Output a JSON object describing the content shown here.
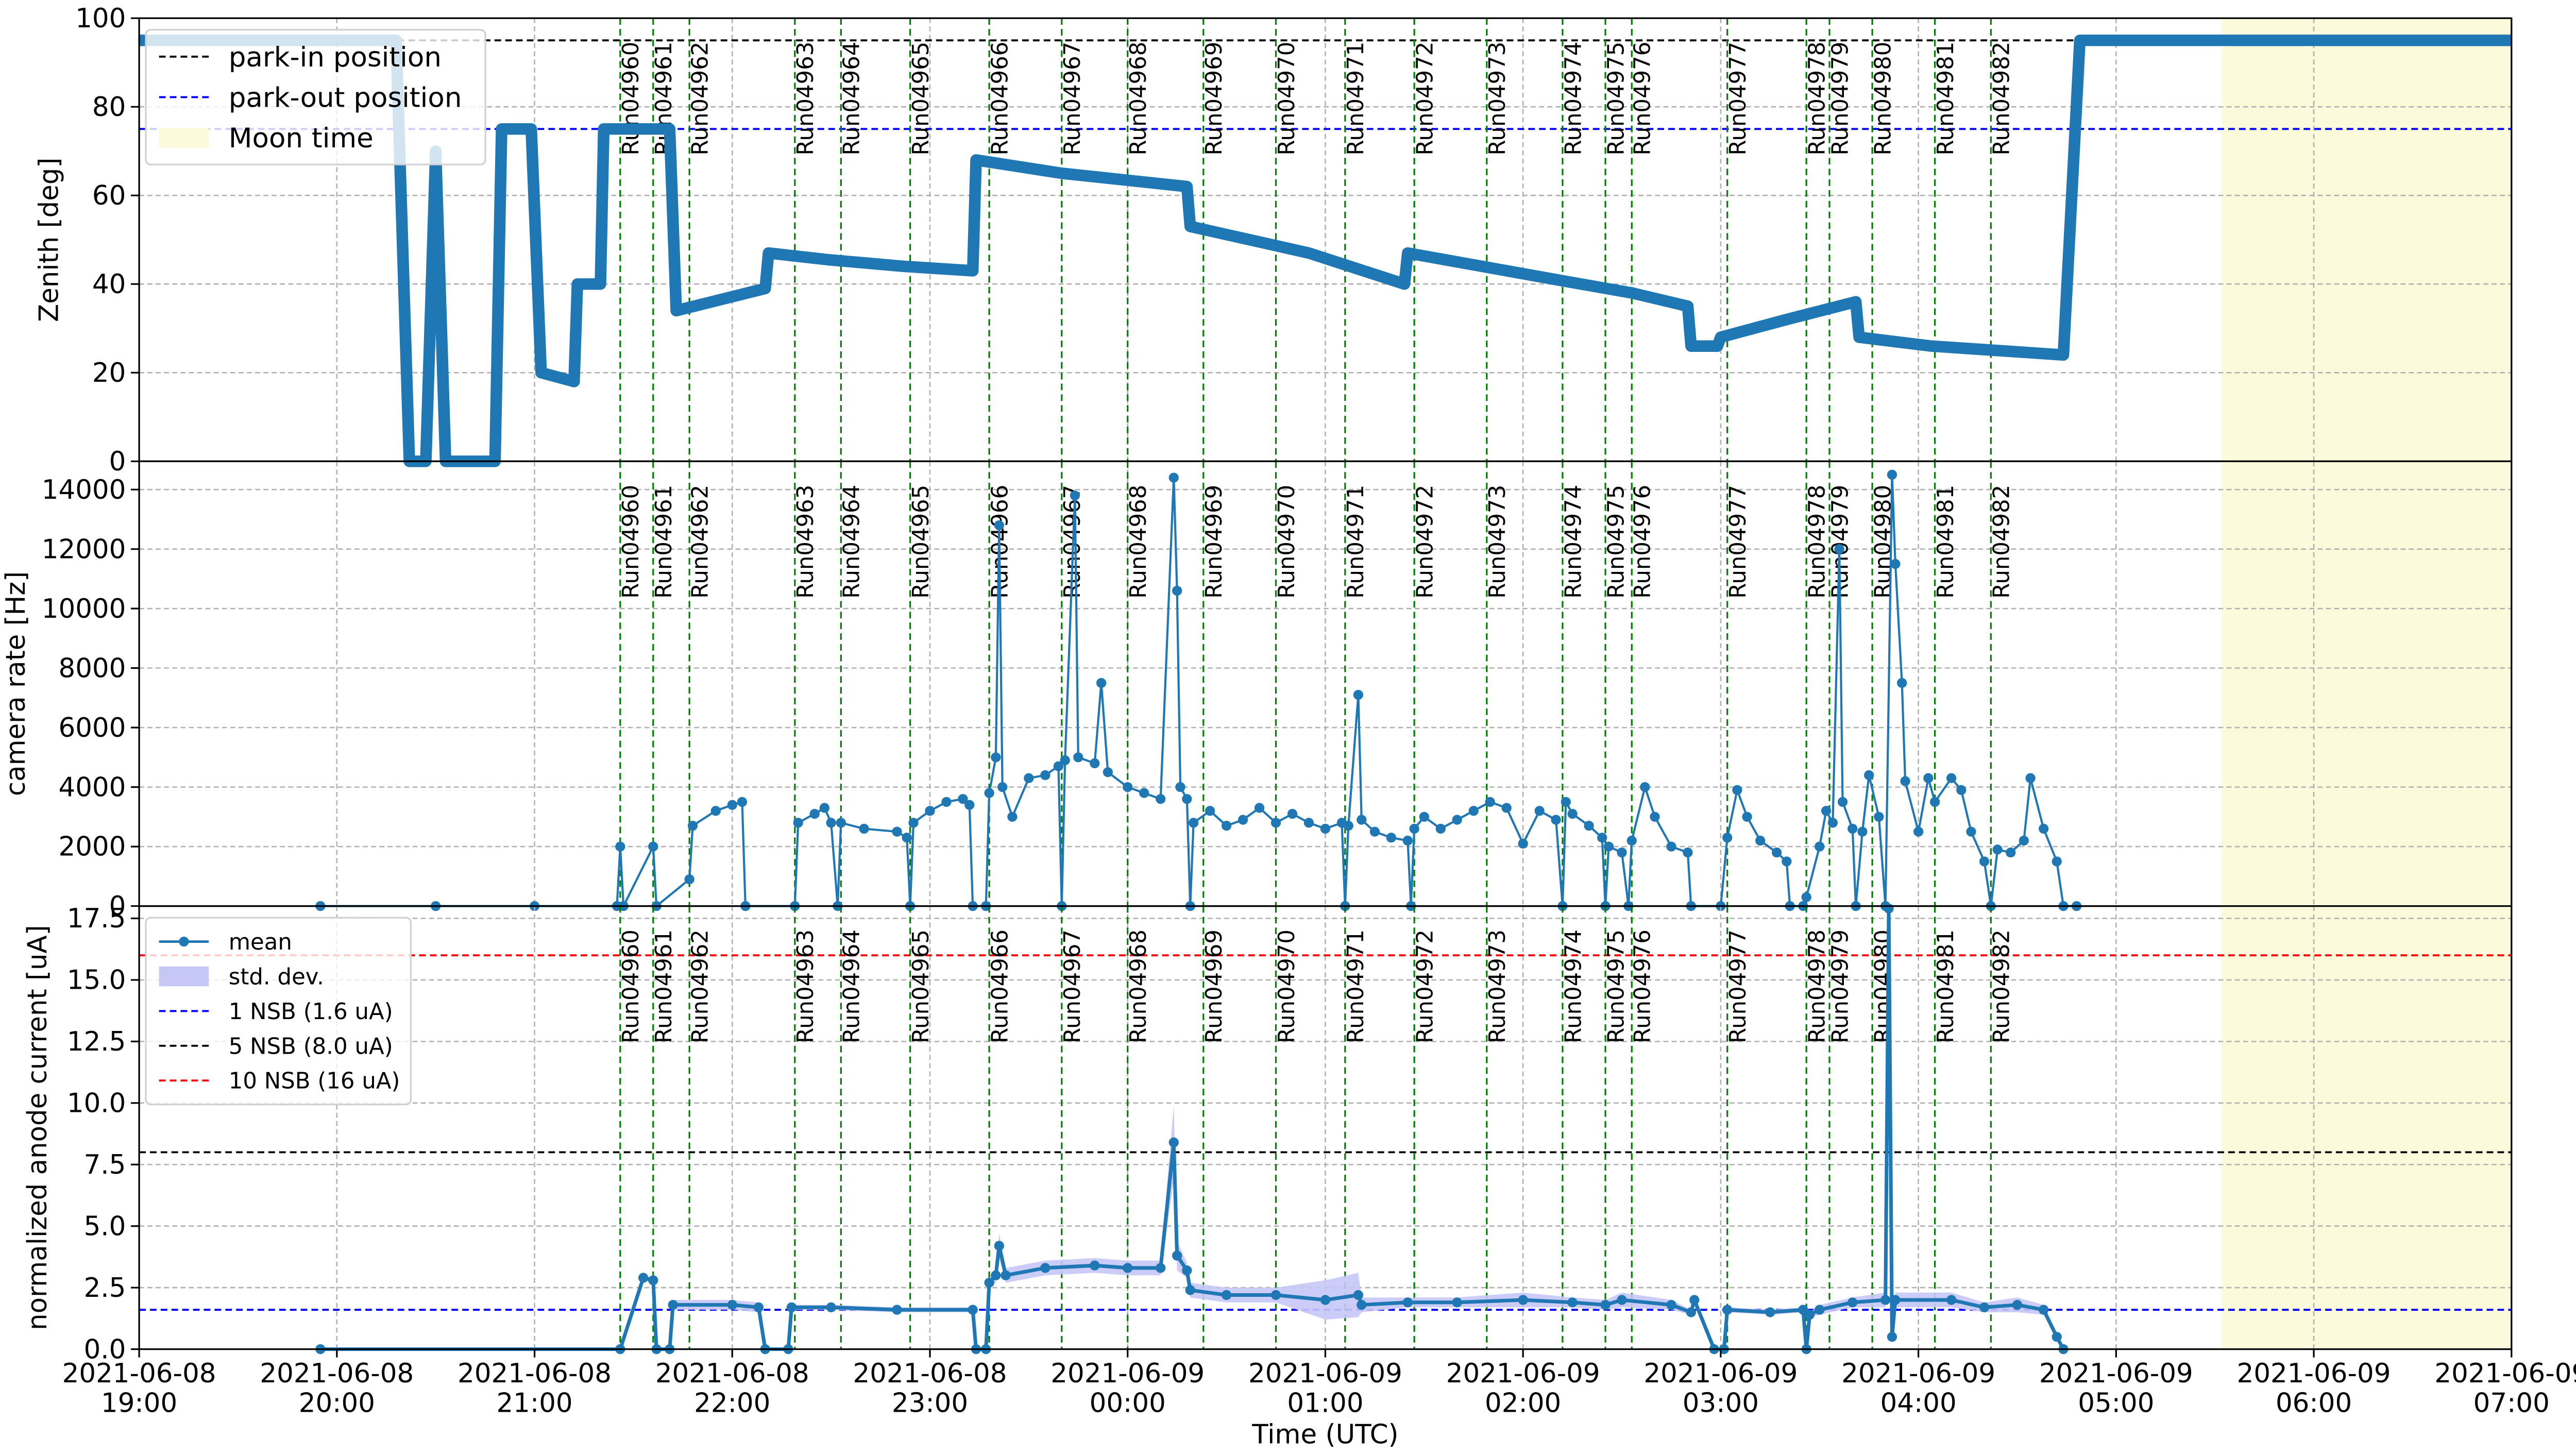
{
  "runs": {
    "line_color": "green",
    "label_color": "red",
    "items": [
      {
        "time": "2021-06-08T21:26",
        "label": "Run04960"
      },
      {
        "time": "2021-06-08T21:36",
        "label": "Run04961"
      },
      {
        "time": "2021-06-08T21:47",
        "label": "Run04962"
      },
      {
        "time": "2021-06-08T22:19",
        "label": "Run04963"
      },
      {
        "time": "2021-06-08T22:33",
        "label": "Run04964"
      },
      {
        "time": "2021-06-08T22:54",
        "label": "Run04965"
      },
      {
        "time": "2021-06-08T23:18",
        "label": "Run04966"
      },
      {
        "time": "2021-06-08T23:40",
        "label": "Run04967"
      },
      {
        "time": "2021-06-09T00:00",
        "label": "Run04968"
      },
      {
        "time": "2021-06-09T00:23",
        "label": "Run04969"
      },
      {
        "time": "2021-06-09T00:45",
        "label": "Run04970"
      },
      {
        "time": "2021-06-09T01:06",
        "label": "Run04971"
      },
      {
        "time": "2021-06-09T01:27",
        "label": "Run04972"
      },
      {
        "time": "2021-06-09T01:49",
        "label": "Run04973"
      },
      {
        "time": "2021-06-09T02:12",
        "label": "Run04974"
      },
      {
        "time": "2021-06-09T02:25",
        "label": "Run04975"
      },
      {
        "time": "2021-06-09T02:33",
        "label": "Run04976"
      },
      {
        "time": "2021-06-09T03:02",
        "label": "Run04977"
      },
      {
        "time": "2021-06-09T03:26",
        "label": "Run04978"
      },
      {
        "time": "2021-06-09T03:33",
        "label": "Run04979"
      },
      {
        "time": "2021-06-09T03:46",
        "label": "Run04980"
      },
      {
        "time": "2021-06-09T04:05",
        "label": "Run04981"
      },
      {
        "time": "2021-06-09T04:22",
        "label": "Run04982"
      }
    ]
  },
  "chart_data": [
    {
      "type": "line",
      "ylabel": "Zenith [deg]",
      "ylim": [
        0,
        100
      ],
      "yticks": [
        0,
        20,
        40,
        60,
        80,
        100
      ],
      "grid": true,
      "legend": "upper left",
      "spans": [
        {
          "name": "Moon time",
          "start": "2021-06-09T05:32",
          "end": "2021-06-09T07:00",
          "color": "#fbfbdc"
        }
      ],
      "hlines": [
        {
          "name": "park-in position",
          "value": 95,
          "color": "black"
        },
        {
          "name": "park-out position",
          "value": 75,
          "color": "blue"
        }
      ],
      "series": [
        {
          "color": "#1f77b4",
          "x": [
            "2021-06-08T19:00",
            "2021-06-08T20:18",
            "2021-06-08T20:22",
            "2021-06-08T20:27",
            "2021-06-08T20:30",
            "2021-06-08T20:33",
            "2021-06-08T20:48",
            "2021-06-08T20:50",
            "2021-06-08T20:59",
            "2021-06-08T21:02",
            "2021-06-08T21:12",
            "2021-06-08T21:13",
            "2021-06-08T21:20",
            "2021-06-08T21:21",
            "2021-06-08T21:41",
            "2021-06-08T21:43",
            "2021-06-08T22:10",
            "2021-06-08T22:11",
            "2021-06-08T22:29",
            "2021-06-08T22:52",
            "2021-06-08T23:13",
            "2021-06-08T23:14",
            "2021-06-08T23:40",
            "2021-06-09T00:18",
            "2021-06-09T00:19",
            "2021-06-09T00:55",
            "2021-06-09T01:24",
            "2021-06-09T01:25",
            "2021-06-09T02:10",
            "2021-06-09T02:33",
            "2021-06-09T02:50",
            "2021-06-09T02:51",
            "2021-06-09T02:59",
            "2021-06-09T03:00",
            "2021-06-09T03:20",
            "2021-06-09T03:41",
            "2021-06-09T03:42",
            "2021-06-09T04:04",
            "2021-06-09T04:44",
            "2021-06-09T04:49",
            "2021-06-09T07:00"
          ],
          "values": [
            95,
            95,
            0,
            0,
            70,
            0,
            0,
            75,
            75,
            20,
            18,
            40,
            40,
            75,
            75,
            34,
            39,
            47,
            45.5,
            44,
            43,
            68,
            65,
            62,
            53,
            47,
            40,
            47,
            41,
            38,
            35,
            26,
            26,
            28,
            32,
            36,
            28,
            26,
            24,
            95,
            95
          ]
        }
      ]
    },
    {
      "type": "line",
      "ylabel": "camera rate [Hz]",
      "ylim": [
        0,
        14950
      ],
      "yticks": [
        0,
        2000,
        4000,
        6000,
        8000,
        10000,
        12000,
        14000
      ],
      "grid": true,
      "series": [
        {
          "color": "#1f77b4",
          "x": [
            "2021-06-08T19:55",
            "2021-06-08T20:30",
            "2021-06-08T21:00",
            "2021-06-08T21:25",
            "2021-06-08T21:26",
            "2021-06-08T21:27",
            "2021-06-08T21:36",
            "2021-06-08T21:37",
            "2021-06-08T21:47",
            "2021-06-08T21:48",
            "2021-06-08T21:55",
            "2021-06-08T22:00",
            "2021-06-08T22:03",
            "2021-06-08T22:04",
            "2021-06-08T22:19",
            "2021-06-08T22:20",
            "2021-06-08T22:25",
            "2021-06-08T22:28",
            "2021-06-08T22:30",
            "2021-06-08T22:32",
            "2021-06-08T22:33",
            "2021-06-08T22:40",
            "2021-06-08T22:50",
            "2021-06-08T22:53",
            "2021-06-08T22:54",
            "2021-06-08T22:55",
            "2021-06-08T23:00",
            "2021-06-08T23:05",
            "2021-06-08T23:10",
            "2021-06-08T23:12",
            "2021-06-08T23:13",
            "2021-06-08T23:17",
            "2021-06-08T23:18",
            "2021-06-08T23:20",
            "2021-06-08T23:21",
            "2021-06-08T23:22",
            "2021-06-08T23:25",
            "2021-06-08T23:30",
            "2021-06-08T23:35",
            "2021-06-08T23:39",
            "2021-06-08T23:40",
            "2021-06-08T23:41",
            "2021-06-08T23:44",
            "2021-06-08T23:45",
            "2021-06-08T23:50",
            "2021-06-08T23:52",
            "2021-06-08T23:54",
            "2021-06-09T00:00",
            "2021-06-09T00:05",
            "2021-06-09T00:10",
            "2021-06-09T00:14",
            "2021-06-09T00:15",
            "2021-06-09T00:16",
            "2021-06-09T00:18",
            "2021-06-09T00:19",
            "2021-06-09T00:20",
            "2021-06-09T00:25",
            "2021-06-09T00:30",
            "2021-06-09T00:35",
            "2021-06-09T00:40",
            "2021-06-09T00:45",
            "2021-06-09T00:50",
            "2021-06-09T00:55",
            "2021-06-09T01:00",
            "2021-06-09T01:05",
            "2021-06-09T01:06",
            "2021-06-09T01:07",
            "2021-06-09T01:10",
            "2021-06-09T01:11",
            "2021-06-09T01:15",
            "2021-06-09T01:20",
            "2021-06-09T01:25",
            "2021-06-09T01:26",
            "2021-06-09T01:27",
            "2021-06-09T01:30",
            "2021-06-09T01:35",
            "2021-06-09T01:40",
            "2021-06-09T01:45",
            "2021-06-09T01:50",
            "2021-06-09T01:55",
            "2021-06-09T02:00",
            "2021-06-09T02:05",
            "2021-06-09T02:10",
            "2021-06-09T02:12",
            "2021-06-09T02:13",
            "2021-06-09T02:15",
            "2021-06-09T02:20",
            "2021-06-09T02:24",
            "2021-06-09T02:25",
            "2021-06-09T02:26",
            "2021-06-09T02:30",
            "2021-06-09T02:32",
            "2021-06-09T02:33",
            "2021-06-09T02:37",
            "2021-06-09T02:40",
            "2021-06-09T02:45",
            "2021-06-09T02:50",
            "2021-06-09T02:51",
            "2021-06-09T03:00",
            "2021-06-09T03:02",
            "2021-06-09T03:05",
            "2021-06-09T03:08",
            "2021-06-09T03:12",
            "2021-06-09T03:17",
            "2021-06-09T03:20",
            "2021-06-09T03:21",
            "2021-06-09T03:25",
            "2021-06-09T03:26",
            "2021-06-09T03:30",
            "2021-06-09T03:32",
            "2021-06-09T03:34",
            "2021-06-09T03:36",
            "2021-06-09T03:37",
            "2021-06-09T03:40",
            "2021-06-09T03:41",
            "2021-06-09T03:43",
            "2021-06-09T03:45",
            "2021-06-09T03:48",
            "2021-06-09T03:50",
            "2021-06-09T03:52",
            "2021-06-09T03:53",
            "2021-06-09T03:55",
            "2021-06-09T03:56",
            "2021-06-09T04:00",
            "2021-06-09T04:03",
            "2021-06-09T04:05",
            "2021-06-09T04:10",
            "2021-06-09T04:13",
            "2021-06-09T04:16",
            "2021-06-09T04:20",
            "2021-06-09T04:22",
            "2021-06-09T04:24",
            "2021-06-09T04:28",
            "2021-06-09T04:32",
            "2021-06-09T04:34",
            "2021-06-09T04:38",
            "2021-06-09T04:42",
            "2021-06-09T04:44",
            "2021-06-09T04:48"
          ],
          "values": [
            0,
            0,
            0,
            0,
            2000,
            0,
            2000,
            0,
            900,
            2700,
            3200,
            3400,
            3500,
            0,
            0,
            2800,
            3100,
            3300,
            2800,
            0,
            2800,
            2600,
            2500,
            2300,
            0,
            2800,
            3200,
            3500,
            3600,
            3400,
            0,
            0,
            3800,
            5000,
            12800,
            4000,
            3000,
            4300,
            4400,
            4700,
            0,
            4900,
            13800,
            5000,
            4800,
            7500,
            4500,
            4000,
            3800,
            3600,
            14400,
            10600,
            4000,
            3600,
            0,
            2800,
            3200,
            2700,
            2900,
            3300,
            2800,
            3100,
            2800,
            2600,
            2800,
            0,
            2700,
            7100,
            2900,
            2500,
            2300,
            2200,
            0,
            2600,
            3000,
            2600,
            2900,
            3200,
            3500,
            3300,
            2100,
            3200,
            2900,
            0,
            3500,
            3100,
            2700,
            2300,
            0,
            2000,
            1800,
            0,
            2200,
            4000,
            3000,
            2000,
            1800,
            0,
            0,
            2300,
            3900,
            3000,
            2200,
            1800,
            1500,
            0,
            0,
            300,
            2000,
            3200,
            2800,
            12000,
            3500,
            2600,
            0,
            2500,
            4400,
            3000,
            0,
            14500,
            11500,
            7500,
            4200,
            2500,
            4300,
            3500,
            4300,
            3900,
            2500,
            1500,
            0,
            1900,
            1800,
            2200,
            4300,
            2600,
            1500,
            0,
            0
          ]
        }
      ]
    },
    {
      "type": "line",
      "ylabel": "normalized anode current [uA]",
      "xlabel": "Time (UTC)",
      "ylim": [
        0,
        18
      ],
      "yticks": [
        {
          "value": 0,
          "label": "0.0"
        },
        2.5,
        {
          "value": 5,
          "label": "5.0"
        },
        7.5,
        {
          "value": 10,
          "label": "10.0"
        },
        12.5,
        {
          "value": 15,
          "label": "15.0"
        },
        17.5
      ],
      "xlim": [
        "2021-06-08T19:00",
        "2021-06-09T07:00"
      ],
      "xticks": [
        {
          "value": "2021-06-08T19:00",
          "label": "2021-06-08\n19:00"
        },
        {
          "value": "2021-06-08T20:00",
          "label": "2021-06-08\n20:00"
        },
        {
          "value": "2021-06-08T21:00",
          "label": "2021-06-08\n21:00"
        },
        {
          "value": "2021-06-08T22:00",
          "label": "2021-06-08\n22:00"
        },
        {
          "value": "2021-06-08T23:00",
          "label": "2021-06-08\n23:00"
        },
        {
          "value": "2021-06-09T00:00",
          "label": "2021-06-09\n00:00"
        },
        {
          "value": "2021-06-09T01:00",
          "label": "2021-06-09\n01:00"
        },
        {
          "value": "2021-06-09T02:00",
          "label": "2021-06-09\n02:00"
        },
        {
          "value": "2021-06-09T03:00",
          "label": "2021-06-09\n03:00"
        },
        {
          "value": "2021-06-09T04:00",
          "label": "2021-06-09\n04:00"
        },
        {
          "value": "2021-06-09T05:00",
          "label": "2021-06-09\n05:00"
        },
        {
          "value": "2021-06-09T06:00",
          "label": "2021-06-09\n06:00"
        },
        {
          "value": "2021-06-09T07:00",
          "label": "2021-06-09\n07:00"
        }
      ],
      "grid": true,
      "legend": "upper left",
      "hlines": [
        {
          "name": "1 NSB (1.6 uA)",
          "value": 1.6,
          "color": "blue"
        },
        {
          "name": "5 NSB (8.0 uA)",
          "value": 8.0,
          "color": "black"
        },
        {
          "name": "10 NSB (16 uA)",
          "value": 16,
          "color": "red"
        }
      ],
      "series": [
        {
          "name": "mean",
          "color": "#1f77b4",
          "x": [
            "2021-06-08T19:55",
            "2021-06-08T21:26",
            "2021-06-08T21:33",
            "2021-06-08T21:36",
            "2021-06-08T21:37",
            "2021-06-08T21:41",
            "2021-06-08T21:42",
            "2021-06-08T22:00",
            "2021-06-08T22:08",
            "2021-06-08T22:10",
            "2021-06-08T22:17",
            "2021-06-08T22:18",
            "2021-06-08T22:30",
            "2021-06-08T22:50",
            "2021-06-08T23:13",
            "2021-06-08T23:14",
            "2021-06-08T23:17",
            "2021-06-08T23:18",
            "2021-06-08T23:20",
            "2021-06-08T23:21",
            "2021-06-08T23:23",
            "2021-06-08T23:35",
            "2021-06-08T23:50",
            "2021-06-09T00:00",
            "2021-06-09T00:10",
            "2021-06-09T00:14",
            "2021-06-09T00:15",
            "2021-06-09T00:18",
            "2021-06-09T00:19",
            "2021-06-09T00:30",
            "2021-06-09T00:45",
            "2021-06-09T01:00",
            "2021-06-09T01:10",
            "2021-06-09T01:11",
            "2021-06-09T01:25",
            "2021-06-09T01:40",
            "2021-06-09T02:00",
            "2021-06-09T02:15",
            "2021-06-09T02:25",
            "2021-06-09T02:30",
            "2021-06-09T02:45",
            "2021-06-09T02:51",
            "2021-06-09T02:52",
            "2021-06-09T02:58",
            "2021-06-09T03:01",
            "2021-06-09T03:02",
            "2021-06-09T03:15",
            "2021-06-09T03:25",
            "2021-06-09T03:26",
            "2021-06-09T03:27",
            "2021-06-09T03:30",
            "2021-06-09T03:40",
            "2021-06-09T03:50",
            "2021-06-09T03:51",
            "2021-06-09T03:52",
            "2021-06-09T03:53",
            "2021-06-09T04:10",
            "2021-06-09T04:20",
            "2021-06-09T04:30",
            "2021-06-09T04:38",
            "2021-06-09T04:42",
            "2021-06-09T04:44"
          ],
          "values": [
            0,
            0,
            2.9,
            2.8,
            0,
            0,
            1.8,
            1.8,
            1.7,
            0,
            0,
            1.7,
            1.7,
            1.6,
            1.6,
            0,
            0,
            2.7,
            3.0,
            4.2,
            3.0,
            3.3,
            3.4,
            3.3,
            3.3,
            8.4,
            3.8,
            3.2,
            2.4,
            2.2,
            2.2,
            2.0,
            2.2,
            1.8,
            1.9,
            1.9,
            2.0,
            1.9,
            1.8,
            2.0,
            1.8,
            1.5,
            2.0,
            0,
            0,
            1.6,
            1.5,
            1.6,
            0,
            1.4,
            1.6,
            1.9,
            2.0,
            17.9,
            0.5,
            2.0,
            2.0,
            1.7,
            1.8,
            1.6,
            0.5,
            0
          ]
        },
        {
          "name": "std. dev.",
          "color": "#c6c6f7",
          "values": [
            0,
            0,
            0.1,
            0.1,
            0,
            0,
            0.2,
            0.2,
            0.2,
            0,
            0,
            0.1,
            0.1,
            0.1,
            0.1,
            0,
            0,
            0.2,
            0.3,
            0.5,
            0.3,
            0.3,
            0.3,
            0.3,
            0.3,
            1.5,
            0.6,
            0.3,
            0.3,
            0.3,
            0.3,
            0.8,
            0.9,
            0.3,
            0.2,
            0.2,
            0.3,
            0.2,
            0.2,
            0.3,
            0.2,
            0.1,
            0.1,
            0,
            0,
            0.1,
            0.1,
            0.1,
            0,
            0.1,
            0.2,
            0.2,
            0.3,
            0.1,
            0.1,
            0.3,
            0.3,
            0.2,
            0.3,
            0.2,
            0.1,
            0
          ]
        }
      ]
    }
  ]
}
